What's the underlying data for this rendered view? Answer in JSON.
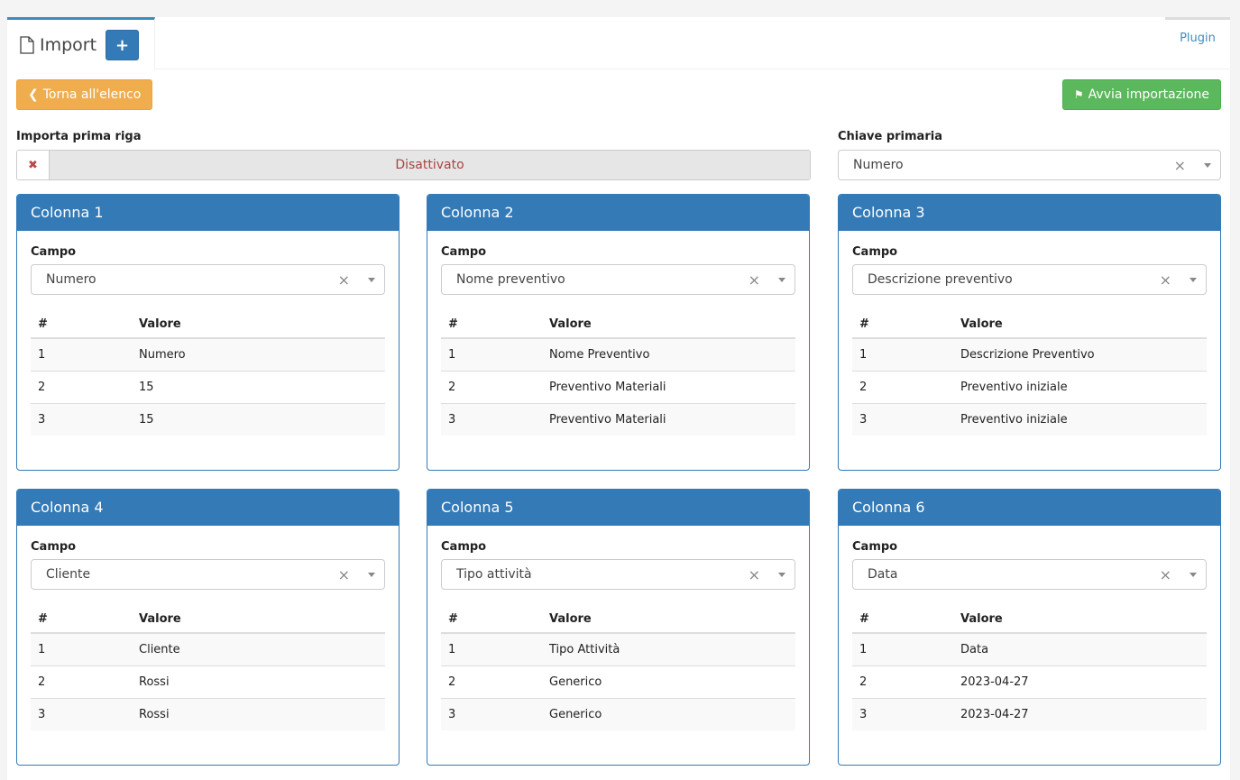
{
  "header": {
    "title": "Import",
    "add_label": "+",
    "plugin_label": "Plugin"
  },
  "toolbar": {
    "back_label": "Torna all'elenco",
    "start_label": "Avvia importazione"
  },
  "first_row": {
    "label": "Importa prima riga",
    "value": "Disattivato"
  },
  "primary_key": {
    "label": "Chiave primaria",
    "value": "Numero"
  },
  "columns": [
    {
      "title": "Colonna 1",
      "field_label": "Campo",
      "field": "Numero",
      "th_num": "#",
      "th_val": "Valore",
      "rows": [
        [
          "1",
          "Numero"
        ],
        [
          "2",
          "15"
        ],
        [
          "3",
          "15"
        ]
      ]
    },
    {
      "title": "Colonna 2",
      "field_label": "Campo",
      "field": "Nome preventivo",
      "th_num": "#",
      "th_val": "Valore",
      "rows": [
        [
          "1",
          "Nome Preventivo"
        ],
        [
          "2",
          "Preventivo Materiali"
        ],
        [
          "3",
          "Preventivo Materiali"
        ]
      ]
    },
    {
      "title": "Colonna 3",
      "field_label": "Campo",
      "field": "Descrizione preventivo",
      "th_num": "#",
      "th_val": "Valore",
      "rows": [
        [
          "1",
          "Descrizione Preventivo"
        ],
        [
          "2",
          "Preventivo iniziale"
        ],
        [
          "3",
          "Preventivo iniziale"
        ]
      ]
    },
    {
      "title": "Colonna 4",
      "field_label": "Campo",
      "field": "Cliente",
      "th_num": "#",
      "th_val": "Valore",
      "rows": [
        [
          "1",
          "Cliente"
        ],
        [
          "2",
          "Rossi"
        ],
        [
          "3",
          "Rossi"
        ]
      ]
    },
    {
      "title": "Colonna 5",
      "field_label": "Campo",
      "field": "Tipo attività",
      "th_num": "#",
      "th_val": "Valore",
      "rows": [
        [
          "1",
          "Tipo Attività"
        ],
        [
          "2",
          "Generico"
        ],
        [
          "3",
          "Generico"
        ]
      ]
    },
    {
      "title": "Colonna 6",
      "field_label": "Campo",
      "field": "Data",
      "th_num": "#",
      "th_val": "Valore",
      "rows": [
        [
          "1",
          "Data"
        ],
        [
          "2",
          "2023-04-27"
        ],
        [
          "3",
          "2023-04-27"
        ]
      ]
    }
  ]
}
